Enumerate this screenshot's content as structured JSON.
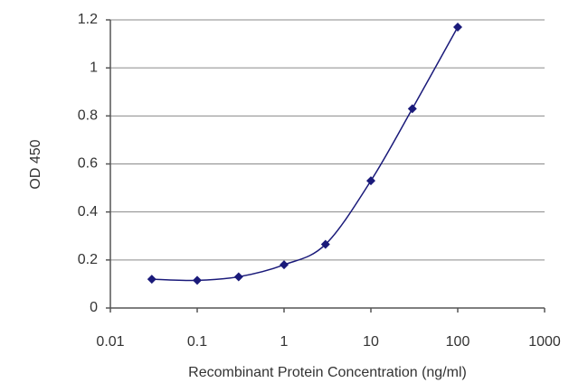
{
  "chart_data": {
    "type": "line",
    "x_label": "Recombinant Protein Concentration (ng/ml)",
    "y_label": "OD 450",
    "x": [
      0.03,
      0.1,
      0.3,
      1,
      3,
      10,
      30,
      100
    ],
    "series": [
      {
        "color": "#1a1a7a",
        "values": [
          0.12,
          0.115,
          0.13,
          0.18,
          0.265,
          0.53,
          0.83,
          1.17
        ]
      }
    ],
    "xlog": true,
    "xlim": [
      0.01,
      1000
    ],
    "xticks": [
      0.01,
      0.1,
      1,
      10,
      100,
      1000
    ],
    "ylim": [
      0,
      1.2
    ],
    "yticks": [
      0,
      0.2,
      0.4,
      0.6,
      0.8,
      1,
      1.2
    ],
    "grid": true
  }
}
